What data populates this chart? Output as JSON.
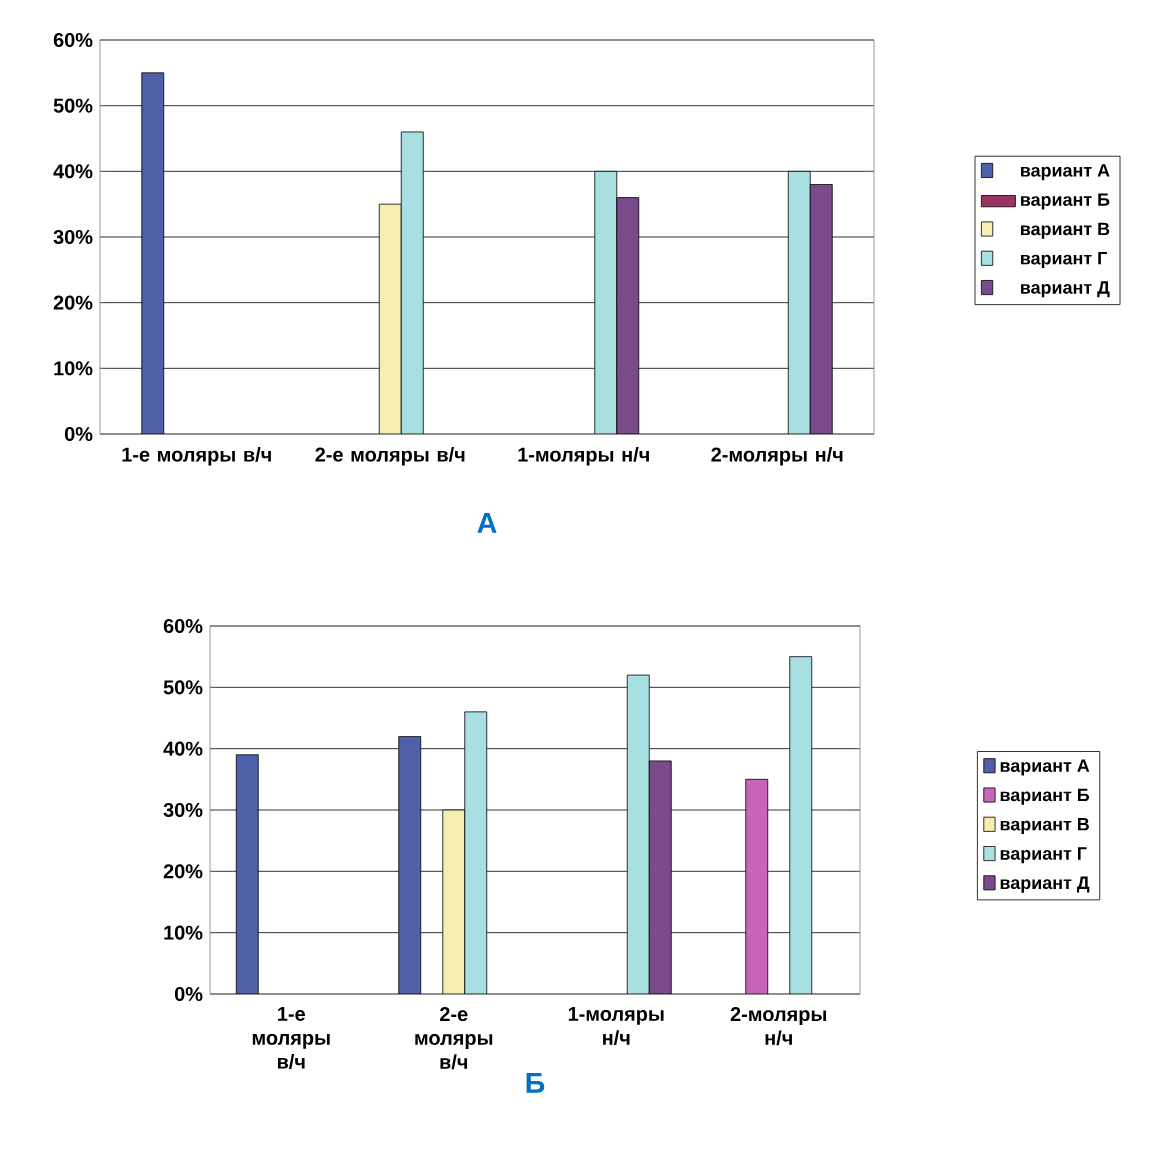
{
  "chart_data": [
    {
      "type": "bar",
      "title": "А",
      "categories": [
        "1-е моляры в/ч",
        "2-е моляры в/ч",
        "1-моляры н/ч",
        "2-моляры н/ч"
      ],
      "series": [
        {
          "name": "вариант А",
          "color": "#4f5fa8",
          "values": [
            55,
            null,
            null,
            null
          ]
        },
        {
          "name": "вариант Б",
          "color": "#993366",
          "values": [
            null,
            null,
            null,
            null
          ]
        },
        {
          "name": "вариант В",
          "color": "#f5eeb0",
          "values": [
            null,
            35,
            null,
            null
          ]
        },
        {
          "name": "вариант Г",
          "color": "#a8dfe0",
          "values": [
            null,
            46,
            40,
            40
          ]
        },
        {
          "name": "вариант Д",
          "color": "#7a4a8a",
          "values": [
            null,
            null,
            36,
            38
          ]
        }
      ],
      "ylim": [
        0,
        60
      ],
      "yticks": [
        {
          "value": 0,
          "label": "0%"
        },
        {
          "value": 10,
          "label": "10%"
        },
        {
          "value": 20,
          "label": "20%"
        },
        {
          "value": 30,
          "label": "30%"
        },
        {
          "value": 40,
          "label": "40%"
        },
        {
          "value": 50,
          "label": "50%"
        },
        {
          "value": 60,
          "label": "60%"
        }
      ],
      "grid": "y",
      "legend": "right"
    },
    {
      "type": "bar",
      "title": "Б",
      "categories": [
        "1-е моляры в/ч",
        "2-е моляры в/ч",
        "1-моляры н/ч",
        "2-моляры н/ч"
      ],
      "series": [
        {
          "name": "вариант А",
          "color": "#4f5fa8",
          "values": [
            39,
            42,
            null,
            null
          ]
        },
        {
          "name": "вариант Б",
          "color": "#c766b8",
          "values": [
            null,
            null,
            null,
            35
          ]
        },
        {
          "name": "вариант В",
          "color": "#f5eeb0",
          "values": [
            null,
            30,
            null,
            null
          ]
        },
        {
          "name": "вариант Г",
          "color": "#a8dfe0",
          "values": [
            null,
            46,
            52,
            55
          ]
        },
        {
          "name": "вариант Д",
          "color": "#7a4a8a",
          "values": [
            null,
            null,
            38,
            null
          ]
        }
      ],
      "ylim": [
        0,
        60
      ],
      "yticks": [
        {
          "value": 0,
          "label": "0%"
        },
        {
          "value": 10,
          "label": "10%"
        },
        {
          "value": 20,
          "label": "20%"
        },
        {
          "value": 30,
          "label": "30%"
        },
        {
          "value": 40,
          "label": "40%"
        },
        {
          "value": 50,
          "label": "50%"
        },
        {
          "value": 60,
          "label": "60%"
        }
      ],
      "grid": "y",
      "legend": "right"
    }
  ]
}
